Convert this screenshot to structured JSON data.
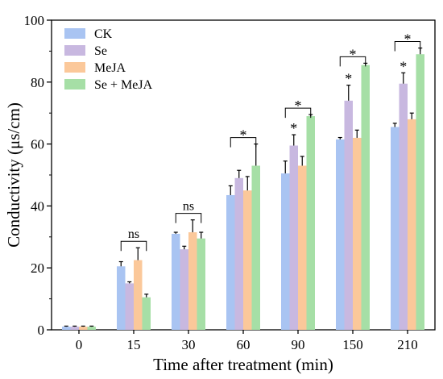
{
  "chart_data": {
    "type": "bar",
    "xlabel": "Time after treatment (min)",
    "ylabel": "Conductivity (μs/cm)",
    "ylim": [
      0,
      100
    ],
    "yticks": [
      0,
      20,
      40,
      60,
      80,
      100
    ],
    "categories": [
      "0",
      "15",
      "30",
      "60",
      "90",
      "150",
      "210"
    ],
    "legend_position": "top-left",
    "series": [
      {
        "name": "CK",
        "color": "#a9c4f2",
        "values": [
          1,
          20.5,
          31,
          43.5,
          50.5,
          61.5,
          65.5
        ],
        "errors": [
          0.2,
          1.5,
          0.5,
          3,
          4,
          0.6,
          1.2
        ]
      },
      {
        "name": "Se",
        "color": "#c8b8e0",
        "values": [
          1,
          15,
          26,
          49,
          59.5,
          74,
          79.5
        ],
        "errors": [
          0.2,
          0.5,
          1,
          2.5,
          3.5,
          5,
          3.5
        ]
      },
      {
        "name": "MeJA",
        "color": "#fbc89a",
        "values": [
          1,
          22.5,
          31.5,
          45,
          53,
          62,
          68
        ],
        "errors": [
          0.2,
          4,
          4,
          4.5,
          3,
          2.5,
          2
        ]
      },
      {
        "name": "Se + MeJA",
        "color": "#a6dfa6",
        "values": [
          1,
          10.5,
          29.5,
          53,
          69,
          85.5,
          89
        ],
        "errors": [
          0.2,
          1,
          2,
          7,
          0.5,
          0.6,
          2
        ]
      }
    ],
    "annotations": [
      {
        "category": "15",
        "type": "bracket",
        "label": "ns"
      },
      {
        "category": "30",
        "type": "bracket",
        "label": "ns"
      },
      {
        "category": "60",
        "type": "bracket",
        "label": "*"
      },
      {
        "category": "90",
        "type": "bracket",
        "label": "*"
      },
      {
        "category": "90",
        "type": "star",
        "series": "Se",
        "label": "*"
      },
      {
        "category": "150",
        "type": "bracket",
        "label": "*"
      },
      {
        "category": "150",
        "type": "star",
        "series": "Se",
        "label": "*"
      },
      {
        "category": "210",
        "type": "bracket",
        "label": "*"
      },
      {
        "category": "210",
        "type": "star",
        "series": "Se",
        "label": "*"
      }
    ]
  }
}
